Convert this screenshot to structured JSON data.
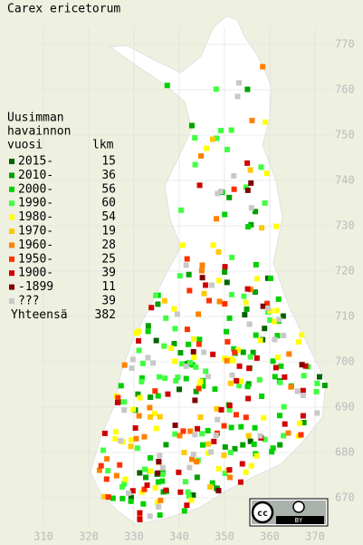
{
  "title": "Carex ericetorum",
  "legend": {
    "heading": [
      "Uusimman",
      "havainnon",
      "vuosi"
    ],
    "count_heading": "lkm",
    "items": [
      {
        "label": "2015-",
        "color": "#006400",
        "count": 15
      },
      {
        "label": "2010-",
        "color": "#00a000",
        "count": 36
      },
      {
        "label": "2000-",
        "color": "#00d000",
        "count": 56
      },
      {
        "label": "1990-",
        "color": "#40ff40",
        "count": 60
      },
      {
        "label": "1980-",
        "color": "#ffff00",
        "count": 54
      },
      {
        "label": "1970-",
        "color": "#ffc800",
        "count": 19
      },
      {
        "label": "1960-",
        "color": "#ff8000",
        "count": 28
      },
      {
        "label": "1950-",
        "color": "#ff3000",
        "count": 25
      },
      {
        "label": "1900-",
        "color": "#d00000",
        "count": 39
      },
      {
        "label": "-1899",
        "color": "#800000",
        "count": 11
      },
      {
        "label": "???",
        "color": "#c8c8c8",
        "count": 39
      }
    ],
    "total_label": "Yhteensä",
    "total": 382
  },
  "axes": {
    "x_ticks": [
      310,
      320,
      330,
      340,
      350,
      360,
      370
    ],
    "y_ticks": [
      670,
      680,
      690,
      700,
      710,
      720,
      730,
      740,
      750,
      760,
      770
    ]
  },
  "badge": {
    "icon": "cc",
    "label": "BY"
  }
}
